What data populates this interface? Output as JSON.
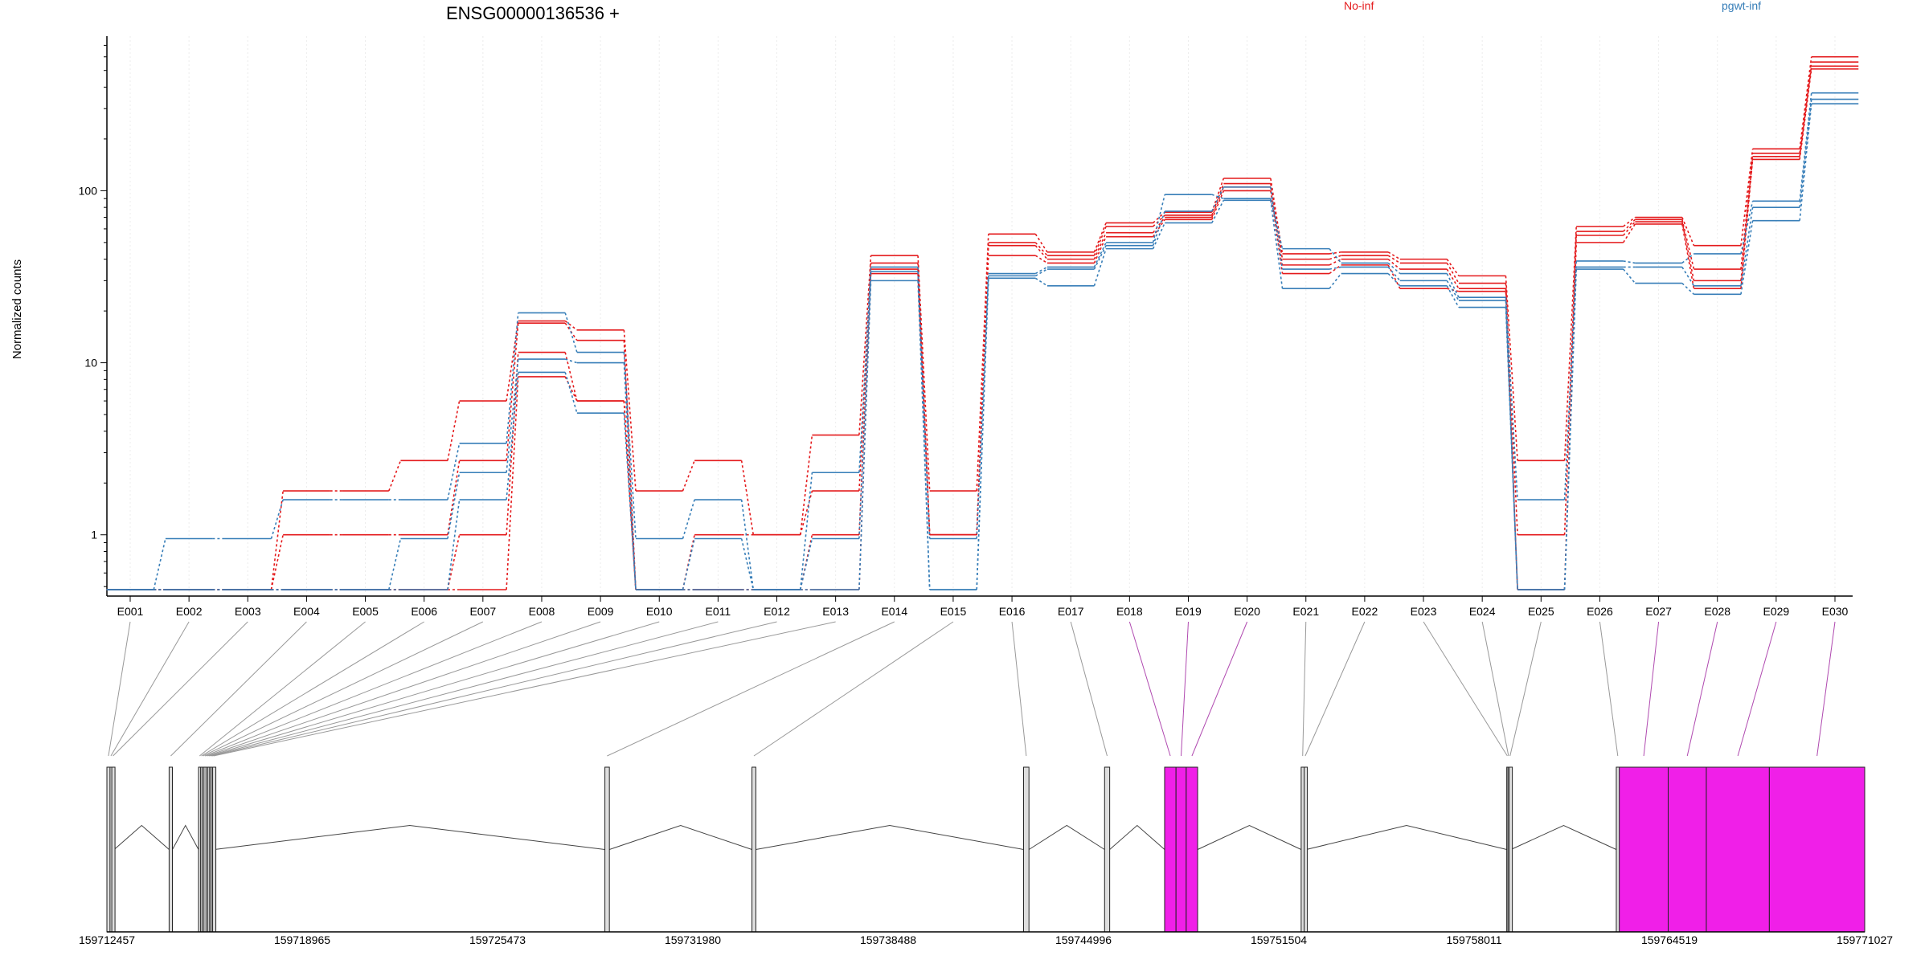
{
  "chart_data": {
    "type": "line",
    "title": "ENSG00000136536 +",
    "ylabel": "Normalized counts",
    "xlabel": "",
    "y_scale": "log",
    "ylim": [
      0.45,
      750
    ],
    "y_ticks": [
      1,
      10,
      100
    ],
    "y_tick_labels": [
      "1",
      "10",
      "100"
    ],
    "grid": "vertical-dotted",
    "legend_placement": "top",
    "categories": [
      "E001",
      "E002",
      "E003",
      "E004",
      "E005",
      "E006",
      "E007",
      "E008",
      "E009",
      "E010",
      "E011",
      "E012",
      "E013",
      "E014",
      "E015",
      "E016",
      "E017",
      "E018",
      "E019",
      "E020",
      "E021",
      "E022",
      "E023",
      "E024",
      "E025",
      "E026",
      "E027",
      "E028",
      "E029",
      "E030"
    ],
    "series": [
      {
        "name": "No-inf",
        "color": "#e41a1c",
        "values": [
          0.48,
          0.48,
          0.48,
          1.8,
          1.8,
          2.7,
          6.0,
          17.5,
          15.5,
          1.8,
          2.7,
          1.0,
          3.8,
          42,
          1.8,
          56,
          44,
          65,
          75,
          118,
          43,
          44,
          40,
          32,
          2.7,
          62,
          70,
          48,
          175,
          600
        ]
      },
      {
        "name": "No-inf",
        "color": "#e41a1c",
        "values": [
          0.48,
          0.48,
          0.48,
          1.0,
          1.0,
          1.0,
          2.7,
          17.0,
          13.5,
          0.48,
          1.0,
          1.0,
          1.8,
          38,
          1.0,
          50,
          42,
          62,
          72,
          110,
          40,
          42,
          38,
          29,
          1.0,
          58,
          68,
          35,
          165,
          560
        ]
      },
      {
        "name": "No-inf",
        "color": "#e41a1c",
        "values": [
          0.48,
          0.48,
          0.48,
          0.48,
          0.48,
          0.48,
          1.0,
          11.5,
          6.0,
          0.48,
          0.48,
          0.48,
          1.0,
          35,
          1.0,
          48,
          40,
          57,
          70,
          105,
          37,
          40,
          35,
          27,
          0.48,
          55,
          66,
          30,
          158,
          530
        ]
      },
      {
        "name": "No-inf",
        "color": "#e41a1c",
        "values": [
          0.48,
          0.48,
          0.48,
          0.48,
          0.48,
          0.48,
          0.48,
          8.3,
          6.0,
          0.48,
          0.48,
          0.48,
          0.48,
          33,
          1.0,
          42,
          38,
          54,
          68,
          100,
          33,
          37,
          27,
          26,
          0.48,
          50,
          64,
          27,
          152,
          510
        ]
      },
      {
        "name": "pgwt-inf",
        "color": "#377eb8",
        "values": [
          0.48,
          0.95,
          0.95,
          1.6,
          1.6,
          1.6,
          3.4,
          19.5,
          11.5,
          0.95,
          1.6,
          0.48,
          2.3,
          36,
          0.95,
          33,
          36,
          50,
          95,
          90,
          46,
          38,
          33,
          24,
          1.6,
          39,
          38,
          43,
          87,
          370
        ]
      },
      {
        "name": "pgwt-inf",
        "color": "#377eb8",
        "values": [
          0.48,
          0.48,
          0.48,
          0.48,
          0.48,
          0.95,
          2.3,
          10.5,
          10.0,
          0.48,
          0.95,
          0.48,
          0.95,
          34,
          0.48,
          32,
          35,
          48,
          76,
          105,
          35,
          36,
          30,
          23,
          0.48,
          36,
          36,
          28,
          80,
          340
        ]
      },
      {
        "name": "pgwt-inf",
        "color": "#377eb8",
        "values": [
          0.48,
          0.48,
          0.48,
          0.48,
          0.48,
          0.48,
          1.6,
          8.8,
          5.1,
          0.48,
          0.48,
          0.48,
          0.48,
          30,
          0.48,
          31,
          28,
          46,
          65,
          88,
          27,
          33,
          28,
          21,
          0.48,
          35,
          29,
          25,
          67,
          320
        ]
      }
    ],
    "gene_model": {
      "coordinate_labels": [
        "159712457",
        "159718965",
        "159725473",
        "159731980",
        "159738488",
        "159744996",
        "159751504",
        "159758011",
        "159764519",
        "159771027"
      ],
      "coordinate_range": [
        159712457,
        159771027
      ],
      "exon_highlight_color": "#f01fe8",
      "exons": [
        {
          "id": "E001",
          "start": 159712457,
          "end": 159712560,
          "highlight": false
        },
        {
          "id": "E002",
          "start": 159712560,
          "end": 159712620,
          "highlight": false
        },
        {
          "id": "E003",
          "start": 159712620,
          "end": 159712700,
          "highlight": false
        },
        {
          "id": "E004",
          "start": 159714530,
          "end": 159714640,
          "highlight": false
        },
        {
          "id": "E005",
          "start": 159715510,
          "end": 159715580,
          "highlight": false
        },
        {
          "id": "E006",
          "start": 159715580,
          "end": 159715630,
          "highlight": false
        },
        {
          "id": "E007",
          "start": 159715630,
          "end": 159715690,
          "highlight": false
        },
        {
          "id": "E008",
          "start": 159715690,
          "end": 159715760,
          "highlight": false
        },
        {
          "id": "E009",
          "start": 159715760,
          "end": 159715820,
          "highlight": false
        },
        {
          "id": "E010",
          "start": 159715820,
          "end": 159715880,
          "highlight": false
        },
        {
          "id": "E011",
          "start": 159715880,
          "end": 159715930,
          "highlight": false
        },
        {
          "id": "E012",
          "start": 159715930,
          "end": 159715980,
          "highlight": false
        },
        {
          "id": "E013",
          "start": 159715980,
          "end": 159716040,
          "highlight": false
        },
        {
          "id": "E014",
          "start": 159729050,
          "end": 159729200,
          "highlight": false
        },
        {
          "id": "E015",
          "start": 159733950,
          "end": 159734080,
          "highlight": false
        },
        {
          "id": "E016",
          "start": 159743000,
          "end": 159743180,
          "highlight": false
        },
        {
          "id": "E017",
          "start": 159745700,
          "end": 159745870,
          "highlight": false
        },
        {
          "id": "E018",
          "start": 159747700,
          "end": 159748080,
          "highlight": true
        },
        {
          "id": "E019",
          "start": 159748080,
          "end": 159748420,
          "highlight": true
        },
        {
          "id": "E020",
          "start": 159748420,
          "end": 159748800,
          "highlight": true
        },
        {
          "id": "E021",
          "start": 159752250,
          "end": 159752350,
          "highlight": false
        },
        {
          "id": "E022",
          "start": 159752350,
          "end": 159752420,
          "highlight": false
        },
        {
          "id": "E023",
          "start": 159759100,
          "end": 159759140,
          "highlight": false
        },
        {
          "id": "E024",
          "start": 159759140,
          "end": 159759180,
          "highlight": false
        },
        {
          "id": "E025",
          "start": 159759180,
          "end": 159759240,
          "highlight": false
        },
        {
          "id": "E026",
          "start": 159762750,
          "end": 159762850,
          "highlight": false
        },
        {
          "id": "E027",
          "start": 159762850,
          "end": 159764480,
          "highlight": true
        },
        {
          "id": "E028",
          "start": 159764480,
          "end": 159765750,
          "highlight": true
        },
        {
          "id": "E029",
          "start": 159765750,
          "end": 159767850,
          "highlight": true
        },
        {
          "id": "E030",
          "start": 159767850,
          "end": 159771027,
          "highlight": true
        }
      ]
    }
  }
}
